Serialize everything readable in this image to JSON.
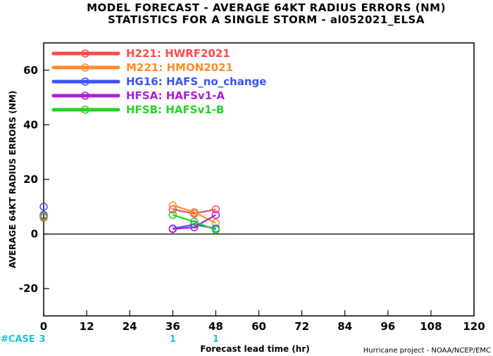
{
  "title": {
    "line1": "MODEL FORECAST - AVERAGE 64KT RADIUS ERRORS (NM)",
    "line2": "STATISTICS FOR A SINGLE STORM - al052021_ELSA"
  },
  "chart_data": {
    "type": "line",
    "xlabel": "Forecast lead time (hr)",
    "ylabel": "AVERAGE 64KT RADIUS ERRORS (NM)",
    "xlim": [
      0,
      120
    ],
    "ylim": [
      -30,
      70
    ],
    "xticks": [
      "0",
      "12",
      "24",
      "36",
      "48",
      "60",
      "72",
      "84",
      "96",
      "108",
      "120"
    ],
    "xtick_values": [
      0,
      12,
      24,
      36,
      48,
      60,
      72,
      84,
      96,
      108,
      120
    ],
    "yticks": [
      "-20",
      "0",
      "20",
      "40",
      "60"
    ],
    "ytick_values": [
      -20,
      0,
      20,
      40,
      60
    ],
    "zero_line": true,
    "legend_placement": "top-left",
    "series": [
      {
        "id": "H221",
        "model": "HWRF2021",
        "color": "#ff4a4a",
        "points": [
          {
            "x": 0,
            "y": 6
          },
          {
            "x": 36,
            "y": 9
          },
          {
            "x": 42,
            "y": 7.5
          },
          {
            "x": 48,
            "y": 9
          }
        ]
      },
      {
        "id": "M221",
        "model": "HMON2021",
        "color": "#ff8c2a",
        "points": [
          {
            "x": 0,
            "y": 6.5
          },
          {
            "x": 36,
            "y": 10.5
          },
          {
            "x": 42,
            "y": 8
          },
          {
            "x": 48,
            "y": 4
          }
        ]
      },
      {
        "id": "HG16",
        "model": "HAFS_no_change",
        "color": "#3a50ff",
        "points": [
          {
            "x": 0,
            "y": 10
          },
          {
            "x": 36,
            "y": 2
          },
          {
            "x": 42,
            "y": 3.5
          },
          {
            "x": 48,
            "y": 2
          }
        ]
      },
      {
        "id": "HFSA",
        "model": "HAFSv1-A",
        "color": "#b01dd8",
        "points": [
          {
            "x": 0,
            "y": 7
          },
          {
            "x": 36,
            "y": 1.8
          },
          {
            "x": 42,
            "y": 2.5
          },
          {
            "x": 48,
            "y": 7
          }
        ]
      },
      {
        "id": "HFSB",
        "model": "HAFSv1-B",
        "color": "#22d422",
        "points": [
          {
            "x": 0,
            "y": 6.5
          },
          {
            "x": 36,
            "y": 7
          },
          {
            "x": 42,
            "y": 4.5
          },
          {
            "x": 48,
            "y": 1.5
          }
        ]
      }
    ],
    "case_counts": {
      "label": "#CASE",
      "counts": [
        {
          "x": 0,
          "n": "3"
        },
        {
          "x": 36,
          "n": "1"
        },
        {
          "x": 48,
          "n": "1"
        }
      ]
    }
  },
  "credit": "Hurricane project - NOAA/NCEP/EMC"
}
